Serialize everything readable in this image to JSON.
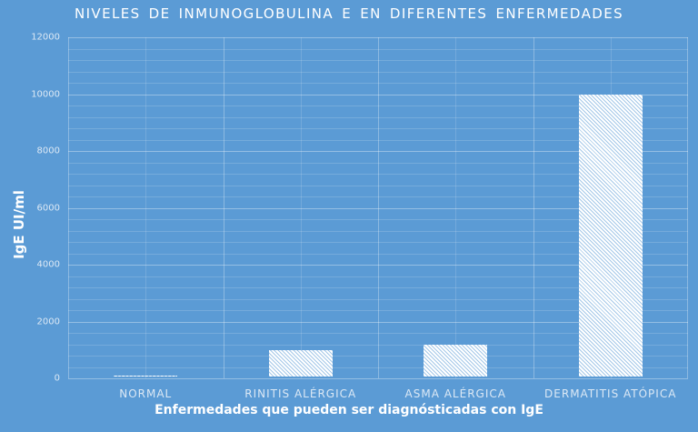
{
  "chart_data": {
    "type": "bar",
    "title": "NIVELES DE INMUNOGLOBULINA E EN DIFERENTES ENFERMEDADES",
    "xlabel": "Enfermedades que pueden ser diagnósticadas con IgE",
    "ylabel": "IgE UI/ml",
    "categories": [
      "NORMAL",
      "RINITIS ALÉRGICA",
      "ASMA ALÉRGICA",
      "DERMATITIS ATÓPICA"
    ],
    "values": [
      100,
      1000,
      1200,
      10000
    ],
    "ylim": [
      0,
      12000
    ],
    "yticks": [
      "0",
      "2000",
      "4000",
      "6000",
      "8000",
      "10000",
      "12000"
    ],
    "grid": true,
    "legend": null,
    "colors": {
      "background": "#5b9bd5",
      "bar": "#ffffff",
      "hatch": "#5b9bd5"
    }
  }
}
